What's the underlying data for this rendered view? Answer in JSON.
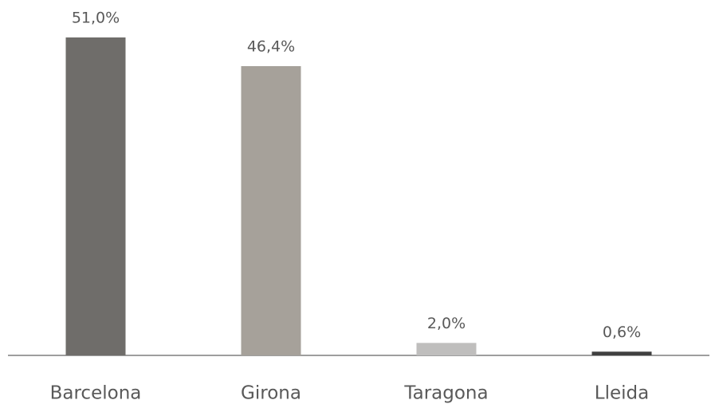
{
  "chart_data": {
    "type": "bar",
    "categories": [
      "Barcelona",
      "Girona",
      "Taragona",
      "Lleida"
    ],
    "values": [
      51.0,
      46.4,
      2.0,
      0.6
    ],
    "value_labels": [
      "51,0%",
      "46,4%",
      "2,0%",
      "0,6%"
    ],
    "colors": [
      "#6f6d6a",
      "#a6a19a",
      "#bfbebd",
      "#404040"
    ],
    "grid": false
  }
}
